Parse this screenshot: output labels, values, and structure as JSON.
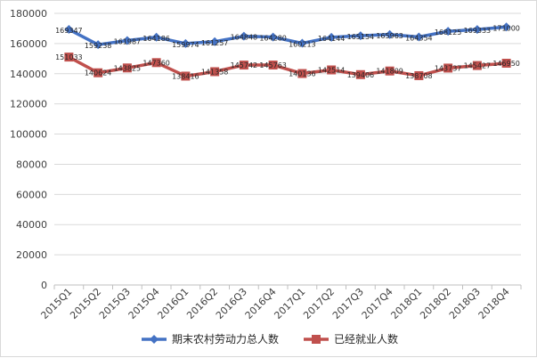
{
  "chart_data": {
    "type": "line",
    "title": "",
    "xlabel": "",
    "ylabel": "",
    "categories": [
      "2015Q1",
      "2015Q2",
      "2015Q3",
      "2015Q4",
      "2016Q1",
      "2016Q2",
      "2016Q3",
      "2016Q4",
      "2017Q1",
      "2017Q2",
      "2017Q3",
      "2017Q4",
      "2018Q1",
      "2018Q2",
      "2018Q3",
      "2018Q4"
    ],
    "ylim": [
      0,
      180000
    ],
    "yticks": [
      0,
      20000,
      40000,
      60000,
      80000,
      100000,
      120000,
      140000,
      160000,
      180000
    ],
    "grid": true,
    "legend_position": "bottom",
    "series": [
      {
        "name": "期末农村劳动力总人数",
        "color": "#4472c4",
        "marker": "diamond",
        "values": [
          169347,
          159238,
          161987,
          164186,
          159974,
          161257,
          164848,
          164280,
          160213,
          164144,
          165154,
          165963,
          164354,
          168125,
          169333,
          171000
        ],
        "labels": [
          "169347",
          "159238",
          "161987",
          "164186",
          "159974",
          "161257",
          "164848",
          "164280",
          "160213",
          "164144",
          "165154",
          "165963",
          "164354",
          "168125",
          "169333",
          "171000"
        ]
      },
      {
        "name": "已经就业人数",
        "color": "#c0504d",
        "marker": "square",
        "values": [
          151033,
          140624,
          143825,
          147360,
          138416,
          141358,
          145742,
          145763,
          140136,
          142514,
          139406,
          141809,
          138708,
          143737,
          145427,
          146950
        ],
        "labels": [
          "151033",
          "140624",
          "143825",
          "147360",
          "138416",
          "141358",
          "145742",
          "145763",
          "140136",
          "142514",
          "139406",
          "141809",
          "138708",
          "143737",
          "145427",
          "146950"
        ]
      }
    ]
  }
}
